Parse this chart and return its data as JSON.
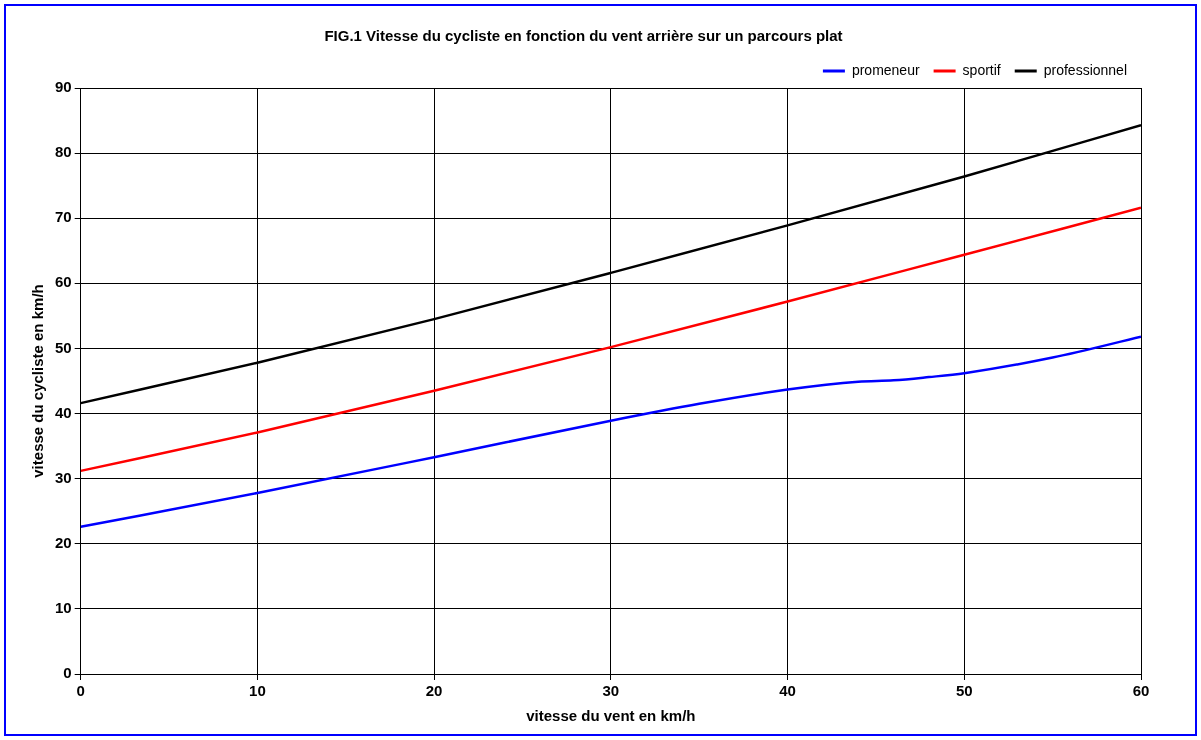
{
  "chart_data": {
    "type": "line",
    "title": "FIG.1 Vitesse du cycliste en fonction du vent arrière sur un parcours plat",
    "xlabel": "vitesse du vent en km/h",
    "ylabel": "vitesse du cycliste en km/h",
    "xlim": [
      0,
      60
    ],
    "xticks": [
      0,
      10,
      20,
      30,
      40,
      50,
      60
    ],
    "ylim": [
      0,
      90
    ],
    "yticks": [
      0,
      10,
      20,
      30,
      40,
      50,
      60,
      70,
      80,
      90
    ],
    "grid": true,
    "legend": "top right",
    "marker": "none",
    "line_style": "solid",
    "series": [
      {
        "name": "promeneur",
        "color": "#0000ff",
        "x": [
          0,
          10,
          20,
          30,
          35,
          40,
          44,
          46,
          48,
          50,
          55,
          60
        ],
        "values": [
          22.6,
          27.8,
          33.3,
          38.9,
          41.5,
          43.7,
          44.9,
          45.1,
          45.6,
          46.2,
          48.6,
          51.8
        ]
      },
      {
        "name": "sportif",
        "color": "#ff0000",
        "x": [
          0,
          10,
          20,
          30,
          40,
          50,
          60
        ],
        "values": [
          31.2,
          37.1,
          43.5,
          50.2,
          57.2,
          64.4,
          71.6
        ]
      },
      {
        "name": "professionnel",
        "color": "#000000",
        "x": [
          0,
          10,
          20,
          30,
          40,
          50,
          60
        ],
        "values": [
          41.6,
          47.8,
          54.5,
          61.6,
          68.9,
          76.4,
          84.3
        ]
      }
    ]
  }
}
